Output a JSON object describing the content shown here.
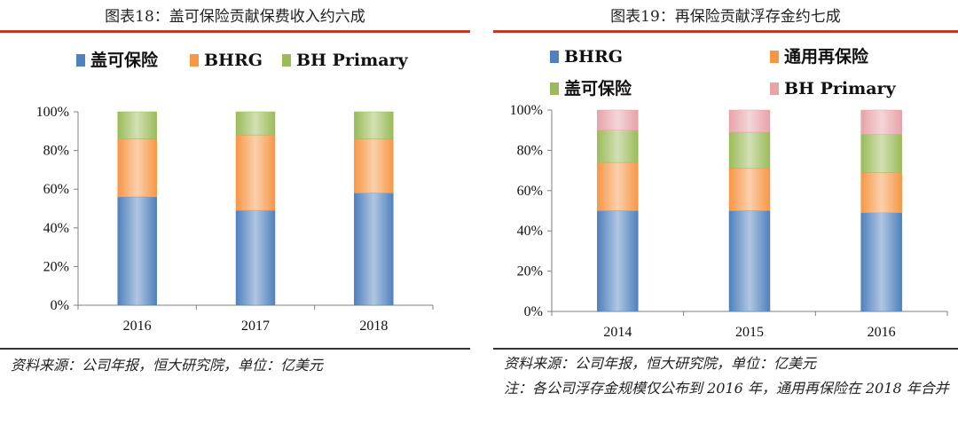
{
  "colors": {
    "rule": "#c0392b",
    "blue": "#4f81bd",
    "orange": "#f79646",
    "green": "#9bbb59",
    "pink": "#e6a3a8"
  },
  "chart_data": [
    {
      "type": "bar",
      "stacked": true,
      "title": "图表18：盖可保险贡献保费收入约六成",
      "categories": [
        "2016",
        "2017",
        "2018"
      ],
      "ylim": [
        0,
        100
      ],
      "yticks": [
        "0%",
        "20%",
        "40%",
        "60%",
        "80%",
        "100%"
      ],
      "legend_position": "top",
      "series": [
        {
          "name": "盖可保险",
          "color": "#4f81bd",
          "values": [
            56,
            49,
            58
          ]
        },
        {
          "name": "BHRG",
          "color": "#f79646",
          "values": [
            30,
            39,
            28
          ]
        },
        {
          "name": "BH Primary",
          "color": "#9bbb59",
          "values": [
            14,
            12,
            14
          ]
        }
      ],
      "source": "资料来源：公司年报，恒大研究院，单位：亿美元"
    },
    {
      "type": "bar",
      "stacked": true,
      "title": "图表19：再保险贡献浮存金约七成",
      "categories": [
        "2014",
        "2015",
        "2016"
      ],
      "ylim": [
        0,
        100
      ],
      "yticks": [
        "0%",
        "20%",
        "40%",
        "60%",
        "80%",
        "100%"
      ],
      "legend_position": "top",
      "series": [
        {
          "name": "BHRG",
          "color": "#4f81bd",
          "values": [
            50,
            50,
            49
          ]
        },
        {
          "name": "通用再保险",
          "color": "#f79646",
          "values": [
            24,
            21,
            20
          ]
        },
        {
          "name": "盖可保险",
          "color": "#9bbb59",
          "values": [
            16,
            18,
            19
          ]
        },
        {
          "name": "BH Primary",
          "color": "#e6a3a8",
          "values": [
            10,
            11,
            12
          ]
        }
      ],
      "source": "资料来源：公司年报，恒大研究院，单位：亿美元",
      "note_line1": "注：各公司浮存金规模仅公布到 2016 年，通用再保险在 2018 年合并",
      "note_line2": "用再保险在 2018 年合并"
    }
  ]
}
